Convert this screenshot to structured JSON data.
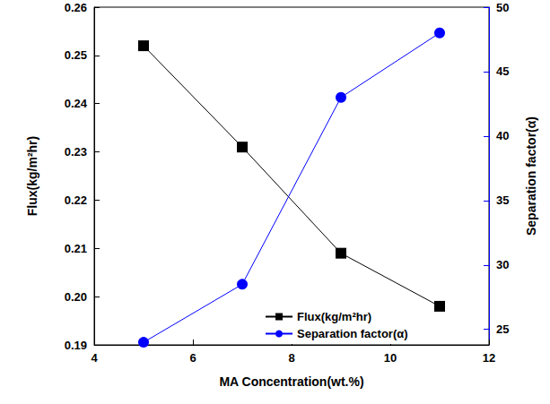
{
  "chart_data": {
    "type": "line",
    "x_label": "MA Concentration(wt.%)",
    "y_label": "Flux(kg/m²hr)",
    "y2_label": "Separation factor(α)",
    "x": [
      5,
      7,
      9,
      11
    ],
    "xlim": [
      4,
      12
    ],
    "xticks": [
      4,
      6,
      8,
      10,
      12
    ],
    "ylim": [
      0.19,
      0.26
    ],
    "yticks": [
      0.19,
      {
        "value": 0.2,
        "label": "0.20"
      },
      0.21,
      0.22,
      0.23,
      0.24,
      0.25,
      0.26
    ],
    "y2lim": [
      23.8,
      50
    ],
    "y2ticks": [
      25,
      30,
      35,
      40,
      45,
      50
    ],
    "grid": false,
    "legend": "lower center",
    "series": [
      {
        "name": "Flux(kg/m²hr)",
        "color": "#000000",
        "marker": "square",
        "line_style": "solid",
        "values": [
          0.252,
          0.231,
          0.209,
          0.198
        ]
      },
      {
        "name": "Separation factor(α)",
        "color": "#0000ff",
        "marker": "circle",
        "line_style": "solid",
        "axis": "y2",
        "values": [
          24,
          28.5,
          43,
          48
        ]
      }
    ]
  }
}
